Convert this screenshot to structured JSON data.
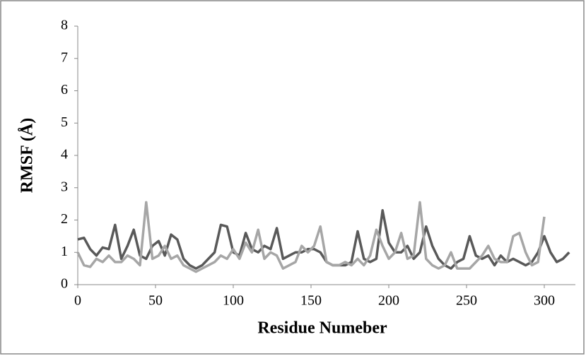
{
  "chart_data": {
    "type": "line",
    "xlabel": "Residue Numeber",
    "ylabel": "RMSF (Å)",
    "xlim": [
      0,
      320
    ],
    "xticks": [
      0,
      50,
      100,
      150,
      200,
      250,
      300
    ],
    "ylim": [
      0,
      8
    ],
    "yticks": [
      0,
      1,
      2,
      3,
      4,
      5,
      6,
      7,
      8
    ],
    "grid": false,
    "x": [
      0,
      4,
      8,
      12,
      16,
      20,
      24,
      28,
      32,
      36,
      40,
      44,
      48,
      52,
      56,
      60,
      64,
      68,
      72,
      76,
      80,
      84,
      88,
      92,
      96,
      100,
      104,
      108,
      112,
      116,
      120,
      124,
      128,
      132,
      136,
      140,
      144,
      148,
      152,
      156,
      160,
      164,
      168,
      172,
      176,
      180,
      184,
      188,
      192,
      196,
      200,
      204,
      208,
      212,
      216,
      220,
      224,
      228,
      232,
      236,
      240,
      244,
      248,
      252,
      256,
      260,
      264,
      268,
      272,
      276,
      280,
      284,
      288,
      292,
      296,
      300,
      304,
      308,
      312,
      316
    ],
    "series": [
      {
        "color": "#595959",
        "values": [
          1.4,
          1.45,
          1.1,
          0.9,
          1.15,
          1.1,
          1.85,
          0.8,
          1.2,
          1.7,
          0.9,
          0.8,
          1.2,
          1.35,
          0.9,
          1.55,
          1.4,
          0.8,
          0.6,
          0.5,
          0.6,
          0.8,
          1.0,
          1.85,
          1.8,
          1.0,
          0.9,
          1.6,
          1.1,
          1.0,
          1.2,
          1.1,
          1.75,
          0.8,
          0.9,
          1.0,
          1.0,
          1.1,
          1.1,
          1.0,
          0.7,
          0.6,
          0.6,
          0.6,
          0.7,
          1.65,
          0.8,
          0.7,
          0.8,
          2.3,
          1.3,
          1.0,
          1.0,
          1.2,
          0.8,
          1.0,
          1.8,
          1.2,
          0.8,
          0.6,
          0.5,
          0.7,
          0.8,
          1.5,
          0.9,
          0.8,
          0.9,
          0.6,
          0.9,
          0.7,
          0.8,
          0.7,
          0.6,
          0.7,
          1.0,
          1.5,
          1.0,
          0.7,
          0.8,
          1.0
        ]
      },
      {
        "color": "#a6a6a6",
        "values": [
          1.0,
          0.6,
          0.55,
          0.8,
          0.7,
          0.9,
          0.7,
          0.7,
          0.9,
          0.8,
          0.6,
          2.55,
          0.8,
          0.9,
          1.2,
          0.8,
          0.9,
          0.6,
          0.5,
          0.4,
          0.5,
          0.6,
          0.7,
          0.9,
          0.8,
          1.1,
          0.8,
          1.3,
          1.0,
          1.7,
          0.8,
          1.0,
          0.9,
          0.5,
          0.6,
          0.7,
          1.2,
          1.0,
          1.2,
          1.8,
          0.7,
          0.6,
          0.6,
          0.7,
          0.6,
          0.8,
          0.6,
          0.9,
          1.7,
          1.2,
          0.8,
          1.0,
          1.6,
          0.8,
          0.9,
          2.55,
          0.8,
          0.6,
          0.5,
          0.6,
          1.0,
          0.5,
          0.5,
          0.5,
          0.7,
          0.9,
          1.2,
          0.8,
          0.7,
          0.7,
          1.5,
          1.6,
          1.0,
          0.6,
          0.7,
          2.1,
          null,
          null,
          null,
          null
        ]
      }
    ]
  }
}
